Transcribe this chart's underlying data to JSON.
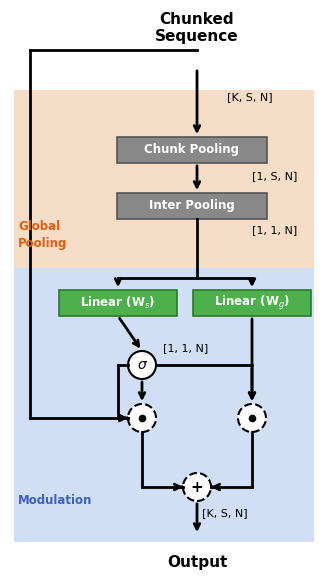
{
  "fig_width": 3.28,
  "fig_height": 5.8,
  "dpi": 100,
  "bg_color": "#ffffff",
  "global_pooling_bg": "#f5ddc8",
  "modulation_bg": "#d0dff5",
  "chunk_pooling_box_color": "#888888",
  "inter_pooling_box_color": "#888888",
  "linear_box_color": "#4cb04c",
  "linear_edge_color": "#2a7a2a",
  "title": "Chunked\nSequence",
  "output_label": "Output",
  "global_pooling_label": "Global\nPooling",
  "modulation_label": "Modulation",
  "chunk_pooling_label": "Chunk Pooling",
  "inter_pooling_label": "Inter Pooling",
  "linear_ws_label": "Linear (W_s)",
  "linear_wg_label": "Linear (W_g)",
  "ksn_label": "[K, S, N]",
  "1sn_label": "[1, S, N]",
  "11n_label": "[1, 1, N]",
  "11n_label2": "[1, 1, N]",
  "ksn_out_label": "[K, S, N]",
  "sigma_label": "σ",
  "plus_label": "+"
}
